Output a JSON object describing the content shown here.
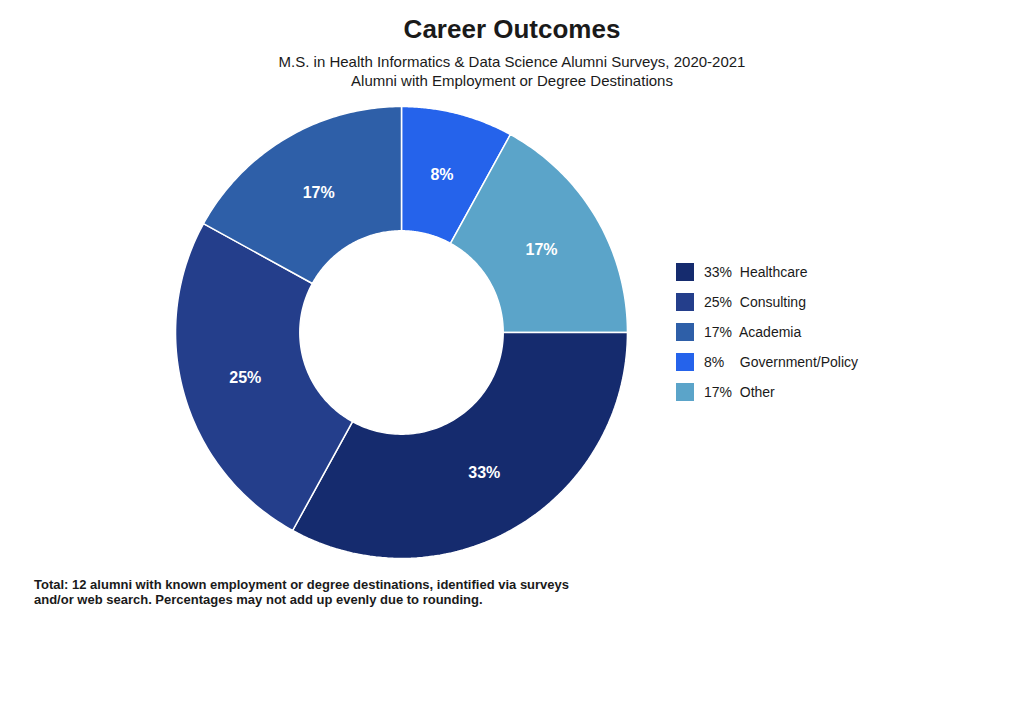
{
  "chart_data": {
    "type": "pie",
    "title": "Career Outcomes",
    "subtitle": "M.S. in Health Informatics & Data Science Alumni Surveys, 2020-2021",
    "subtitle2": "Alumni with Employment or Degree Destinations",
    "footnote": "Total: 12 alumni with known employment or degree destinations, identified via surveys\nand/or web search. Percentages may not add up evenly due to rounding.",
    "categories": [
      "Government/Policy",
      "Other",
      "Healthcare",
      "Consulting",
      "Academia"
    ],
    "values": [
      8,
      17,
      33,
      25,
      17
    ],
    "value_labels": [
      "8%",
      "17%",
      "33%",
      "25%",
      "17%"
    ],
    "colors": [
      "#2563EB",
      "#5BA4C9",
      "#152B6E",
      "#243E8B",
      "#2E5FA8"
    ],
    "data_labels": true,
    "legend": "right",
    "legend_entries": [
      {
        "label": "33%  Healthcare",
        "category": "Healthcare"
      },
      {
        "label": "25%  Consulting",
        "category": "Consulting"
      },
      {
        "label": "17%  Academia",
        "category": "Academia"
      },
      {
        "label": "8%    Government/Policy",
        "category": "Government/Policy"
      },
      {
        "label": "17%  Other",
        "category": "Other"
      }
    ]
  }
}
